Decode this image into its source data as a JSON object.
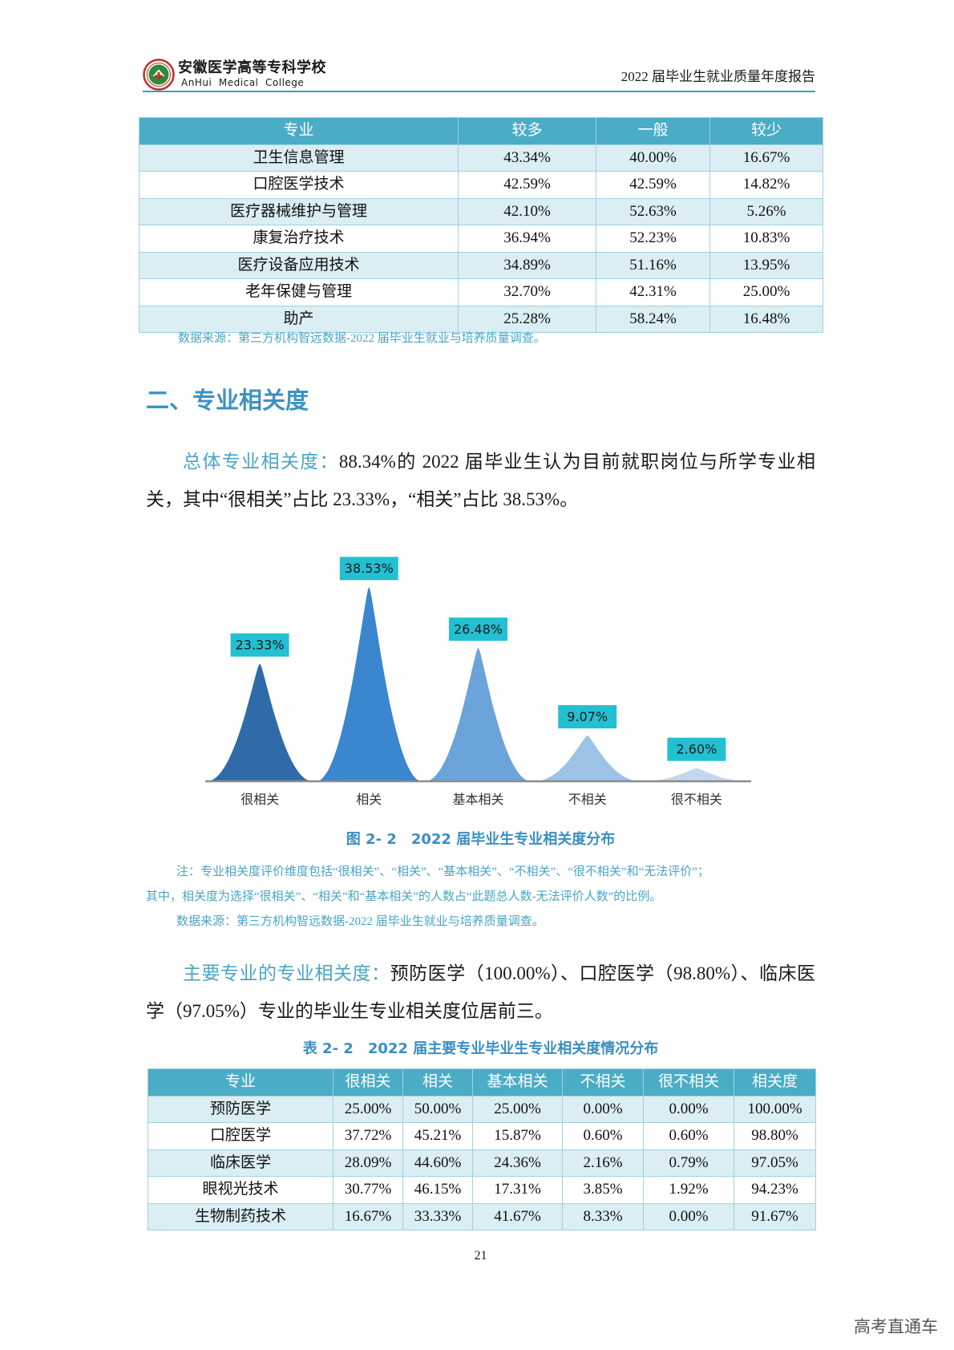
{
  "header": {
    "school_name_cn": "安徽医学高等专科学校",
    "school_name_en": "AnHui  Medical  College",
    "report_title": "2022 届毕业生就业质量年度报告"
  },
  "table1": {
    "columns": [
      "专业",
      "较多",
      "一般",
      "较少"
    ],
    "rows": [
      [
        "卫生信息管理",
        "43.34%",
        "40.00%",
        "16.67%"
      ],
      [
        "口腔医学技术",
        "42.59%",
        "42.59%",
        "14.82%"
      ],
      [
        "医疗器械维护与管理",
        "42.10%",
        "52.63%",
        "5.26%"
      ],
      [
        "康复治疗技术",
        "36.94%",
        "52.23%",
        "10.83%"
      ],
      [
        "医疗设备应用技术",
        "34.89%",
        "51.16%",
        "13.95%"
      ],
      [
        "老年保健与管理",
        "32.70%",
        "42.31%",
        "25.00%"
      ],
      [
        "助产",
        "25.28%",
        "58.24%",
        "16.48%"
      ]
    ],
    "source": "数据来源：第三方机构智远数据-2022 届毕业生就业与培养质量调查。"
  },
  "section_heading": "二、专业相关度",
  "overall_relevance": {
    "lead": "总体专业相关度：",
    "text": "88.34%的 2022 届毕业生认为目前就职岗位与所学专业相关，其中“很相关”占比 23.33%，“相关”占比 38.53%。"
  },
  "figure": {
    "label": "图 2- 2",
    "title": "2022 届毕业生专业相关度分布",
    "note_line1": "注：专业相关度评价维度包括“很相关”、“相关”、“基本相关”、“不相关”、“很不相关”和“无法评价”；",
    "note_line2": "其中，相关度为选择“很相关”、“相关”和“基本相关”的人数占“此题总人数-无法评价人数”的比例。",
    "source": "数据来源：第三方机构智远数据-2022 届毕业生就业与培养质量调查。"
  },
  "major_relevance": {
    "lead": "主要专业的专业相关度：",
    "text": "预防医学（100.00%）、口腔医学（98.80%）、临床医学（97.05%）专业的毕业生专业相关度位居前三。"
  },
  "table2": {
    "label": "表 2- 2",
    "title": "2022 届主要专业毕业生专业相关度情况分布",
    "columns": [
      "专业",
      "很相关",
      "相关",
      "基本相关",
      "不相关",
      "很不相关",
      "相关度"
    ],
    "rows": [
      [
        "预防医学",
        "25.00%",
        "50.00%",
        "25.00%",
        "0.00%",
        "0.00%",
        "100.00%"
      ],
      [
        "口腔医学",
        "37.72%",
        "45.21%",
        "15.87%",
        "0.60%",
        "0.60%",
        "98.80%"
      ],
      [
        "临床医学",
        "28.09%",
        "44.60%",
        "24.36%",
        "2.16%",
        "0.79%",
        "97.05%"
      ],
      [
        "眼视光技术",
        "30.77%",
        "46.15%",
        "17.31%",
        "3.85%",
        "1.92%",
        "94.23%"
      ],
      [
        "生物制药技术",
        "16.67%",
        "33.33%",
        "41.67%",
        "8.33%",
        "0.00%",
        "91.67%"
      ]
    ]
  },
  "page_number": "21",
  "watermark": "高考直通车",
  "colors": {
    "accent": "#3c92c4",
    "note_text": "#4aa5c4",
    "table_header": "#4bacc6",
    "table_row_alt": "#daeef3",
    "header_rule": "#3d9bd0"
  },
  "chart_data": {
    "type": "bar",
    "bar_shape": "peak",
    "categories": [
      "很相关",
      "相关",
      "基本相关",
      "不相关",
      "很不相关"
    ],
    "values": [
      23.33,
      38.53,
      26.48,
      9.07,
      2.6
    ],
    "data_labels": [
      "23.33%",
      "38.53%",
      "26.48%",
      "9.07%",
      "2.60%"
    ],
    "ylim": [
      0,
      40
    ],
    "grid": false,
    "show_legend": false,
    "colors": [
      "#2e6ba8",
      "#3a86cf",
      "#6ba4da",
      "#9cc2e6",
      "#c3d8ee"
    ],
    "label_box_color": "#22c0d1"
  }
}
